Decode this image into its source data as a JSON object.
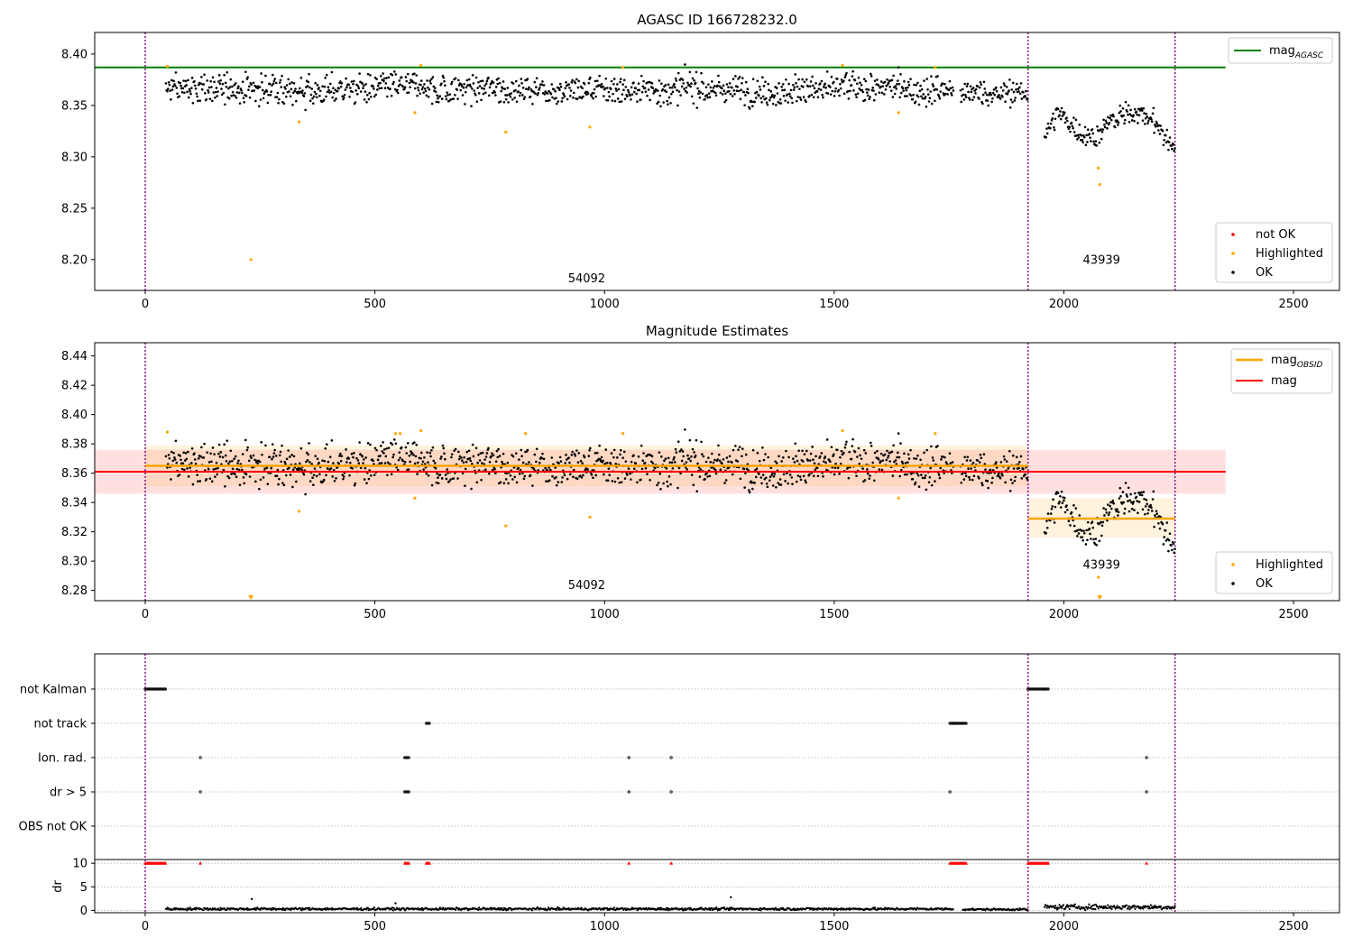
{
  "colors": {
    "ok": "#000000",
    "highlighted": "#ffa500",
    "not_ok": "#ff0000",
    "mag_agasc": "#008000",
    "mag_obsid": "#ffa500",
    "mag": "#ff0000",
    "epoch_line": "#800080"
  },
  "chart_data": [
    {
      "type": "scatter",
      "title": "AGASC ID 166728232.0",
      "xlim": [
        -110,
        2600
      ],
      "ylim": [
        8.17,
        8.421
      ],
      "xticks": [
        "0",
        "500",
        "1000",
        "1500",
        "2000",
        "2500"
      ],
      "yticks": [
        "8.20",
        "8.25",
        "8.30",
        "8.35",
        "8.40"
      ],
      "grid": false,
      "legend_upper": {
        "position": "top-right",
        "entries": [
          "mag_AGASC"
        ]
      },
      "legend_lower": {
        "position": "bottom-right",
        "entries": [
          "not OK",
          "Highlighted",
          "OK"
        ]
      },
      "epoch_lines_x": [
        0,
        1922,
        2242
      ],
      "obsid_labels": [
        {
          "text": "54092",
          "x": 961,
          "y": 8.178
        },
        {
          "text": "43939",
          "x": 2082,
          "y": 8.196
        }
      ],
      "mag_agasc": {
        "value": 8.387,
        "x_range": [
          -110,
          2352
        ]
      },
      "ok_segments": [
        {
          "x_start": 45,
          "x_end": 1760,
          "mean": 8.366,
          "noise": 0.007,
          "spread": 0.018
        },
        {
          "x_start": 1775,
          "x_end": 1922,
          "mean": 8.362,
          "noise": 0.006,
          "spread": 0.016
        },
        {
          "x_start": 1958,
          "x_end": 2242,
          "anchors": [
            [
              1958,
              8.322
            ],
            [
              1985,
              8.34
            ],
            [
              2010,
              8.334
            ],
            [
              2040,
              8.322
            ],
            [
              2070,
              8.322
            ],
            [
              2100,
              8.334
            ],
            [
              2140,
              8.341
            ],
            [
              2175,
              8.344
            ],
            [
              2200,
              8.332
            ],
            [
              2225,
              8.315
            ],
            [
              2242,
              8.31
            ]
          ],
          "spread": 0.012
        }
      ],
      "highlighted_points": [
        [
          48,
          8.388
        ],
        [
          230,
          8.2
        ],
        [
          335,
          8.334
        ],
        [
          587,
          8.343
        ],
        [
          600,
          8.389
        ],
        [
          785,
          8.324
        ],
        [
          968,
          8.329
        ],
        [
          1040,
          8.387
        ],
        [
          1518,
          8.389
        ],
        [
          1640,
          8.343
        ],
        [
          1720,
          8.387
        ],
        [
          2075,
          8.289
        ],
        [
          2078,
          8.273
        ]
      ]
    },
    {
      "type": "scatter",
      "title": "Magnitude Estimates",
      "xlim": [
        -110,
        2600
      ],
      "ylim": [
        8.273,
        8.449
      ],
      "xticks": [
        "0",
        "500",
        "1000",
        "1500",
        "2000",
        "2500"
      ],
      "yticks": [
        "8.28",
        "8.30",
        "8.32",
        "8.34",
        "8.36",
        "8.38",
        "8.40",
        "8.42",
        "8.44"
      ],
      "grid": false,
      "legend_upper": {
        "position": "top-right",
        "entries": [
          "mag_OBSID",
          "mag"
        ]
      },
      "legend_lower": {
        "position": "bottom-right",
        "entries": [
          "Highlighted",
          "OK"
        ]
      },
      "epoch_lines_x": [
        0,
        1922,
        2242
      ],
      "obsid_labels": [
        {
          "text": "54092",
          "x": 961,
          "y": 8.281
        },
        {
          "text": "43939",
          "x": 2082,
          "y": 8.295
        }
      ],
      "mag": {
        "value": 8.361,
        "band": [
          8.346,
          8.376
        ],
        "x_range": [
          -110,
          2352
        ]
      },
      "mag_obsid": [
        {
          "value": 8.365,
          "band": [
            8.351,
            8.379
          ],
          "x_range": [
            0,
            1922
          ]
        },
        {
          "value": 8.329,
          "band": [
            8.316,
            8.343
          ],
          "x_range": [
            1922,
            2242
          ]
        }
      ],
      "highlighted_points": [
        [
          48,
          8.388
        ],
        [
          335,
          8.334
        ],
        [
          545,
          8.387
        ],
        [
          555,
          8.387
        ],
        [
          587,
          8.343
        ],
        [
          600,
          8.389
        ],
        [
          785,
          8.324
        ],
        [
          828,
          8.387
        ],
        [
          968,
          8.33
        ],
        [
          1040,
          8.387
        ],
        [
          1518,
          8.389
        ],
        [
          1640,
          8.343
        ],
        [
          1720,
          8.387
        ],
        [
          2075,
          8.289
        ]
      ],
      "offscale_markers_x": [
        230,
        2078
      ]
    },
    {
      "type": "scatter",
      "title": "",
      "xlim": [
        -110,
        2600
      ],
      "categories": [
        "not Kalman",
        "not track",
        "Ion. rad.",
        "dr > 5",
        "OBS not OK"
      ],
      "flag_runs": {
        "not Kalman": [
          [
            0,
            45
          ],
          [
            1922,
            1968
          ]
        ],
        "not track": [
          [
            612,
            620
          ],
          [
            1752,
            1788
          ]
        ],
        "Ion. rad.": [
          [
            120,
            120
          ],
          [
            565,
            575
          ],
          [
            1053,
            1053
          ],
          [
            1145,
            1145
          ],
          [
            2180,
            2180
          ]
        ],
        "dr > 5": [
          [
            120,
            120
          ],
          [
            565,
            575
          ],
          [
            1053,
            1053
          ],
          [
            1145,
            1145
          ],
          [
            1752,
            1752
          ],
          [
            2180,
            2180
          ]
        ],
        "OBS not OK": []
      },
      "grid": true
    },
    {
      "type": "scatter",
      "title": "",
      "ylabel": "dr",
      "xlim": [
        -110,
        2600
      ],
      "ylim": [
        -0.5,
        10.8
      ],
      "xticks": [
        "0",
        "500",
        "1000",
        "1500",
        "2000",
        "2500"
      ],
      "yticks": [
        "0",
        "5",
        "10"
      ],
      "grid": true,
      "cap_value": 10,
      "cap_runs": [
        [
          0,
          45
        ],
        [
          120,
          120
        ],
        [
          565,
          575
        ],
        [
          612,
          620
        ],
        [
          1053,
          1053
        ],
        [
          1145,
          1145
        ],
        [
          1752,
          1788
        ],
        [
          1922,
          1968
        ],
        [
          2180,
          2180
        ]
      ],
      "dr_segments": [
        {
          "x_start": 45,
          "x_end": 1760,
          "level": 0.3,
          "spread": 0.25
        },
        {
          "x_start": 1780,
          "x_end": 1922,
          "level": 0.2,
          "spread": 0.2
        },
        {
          "x_start": 1958,
          "x_end": 2242,
          "level": 0.7,
          "spread": 0.5
        }
      ],
      "dr_spikes": [
        [
          232,
          2.4
        ],
        [
          545,
          1.5
        ],
        [
          1275,
          2.8
        ]
      ]
    }
  ]
}
